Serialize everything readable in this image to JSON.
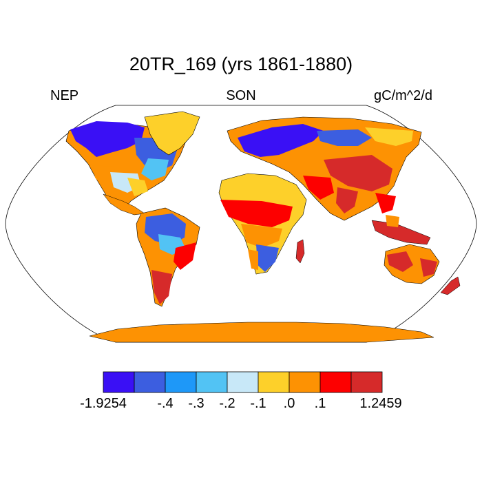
{
  "title": "20TR_169 (yrs 1861-1880)",
  "left_label": "NEP",
  "center_label": "SON",
  "right_label": "gC/m^2/d",
  "colorbar": {
    "colors": [
      "#3a10f5",
      "#3c5ee0",
      "#1e98f8",
      "#52c3f4",
      "#c8e8f8",
      "#fdd02a",
      "#fd9203",
      "#fd0000",
      "#d62a2a"
    ],
    "tick_labels": [
      "-1.9254",
      "-.4",
      "-.3",
      "-.2",
      "-.1",
      ".0",
      ".1",
      "1.2459"
    ]
  },
  "map": {
    "ocean_color": "#ffffff",
    "border_color": "#000000",
    "projection": "robinson"
  }
}
